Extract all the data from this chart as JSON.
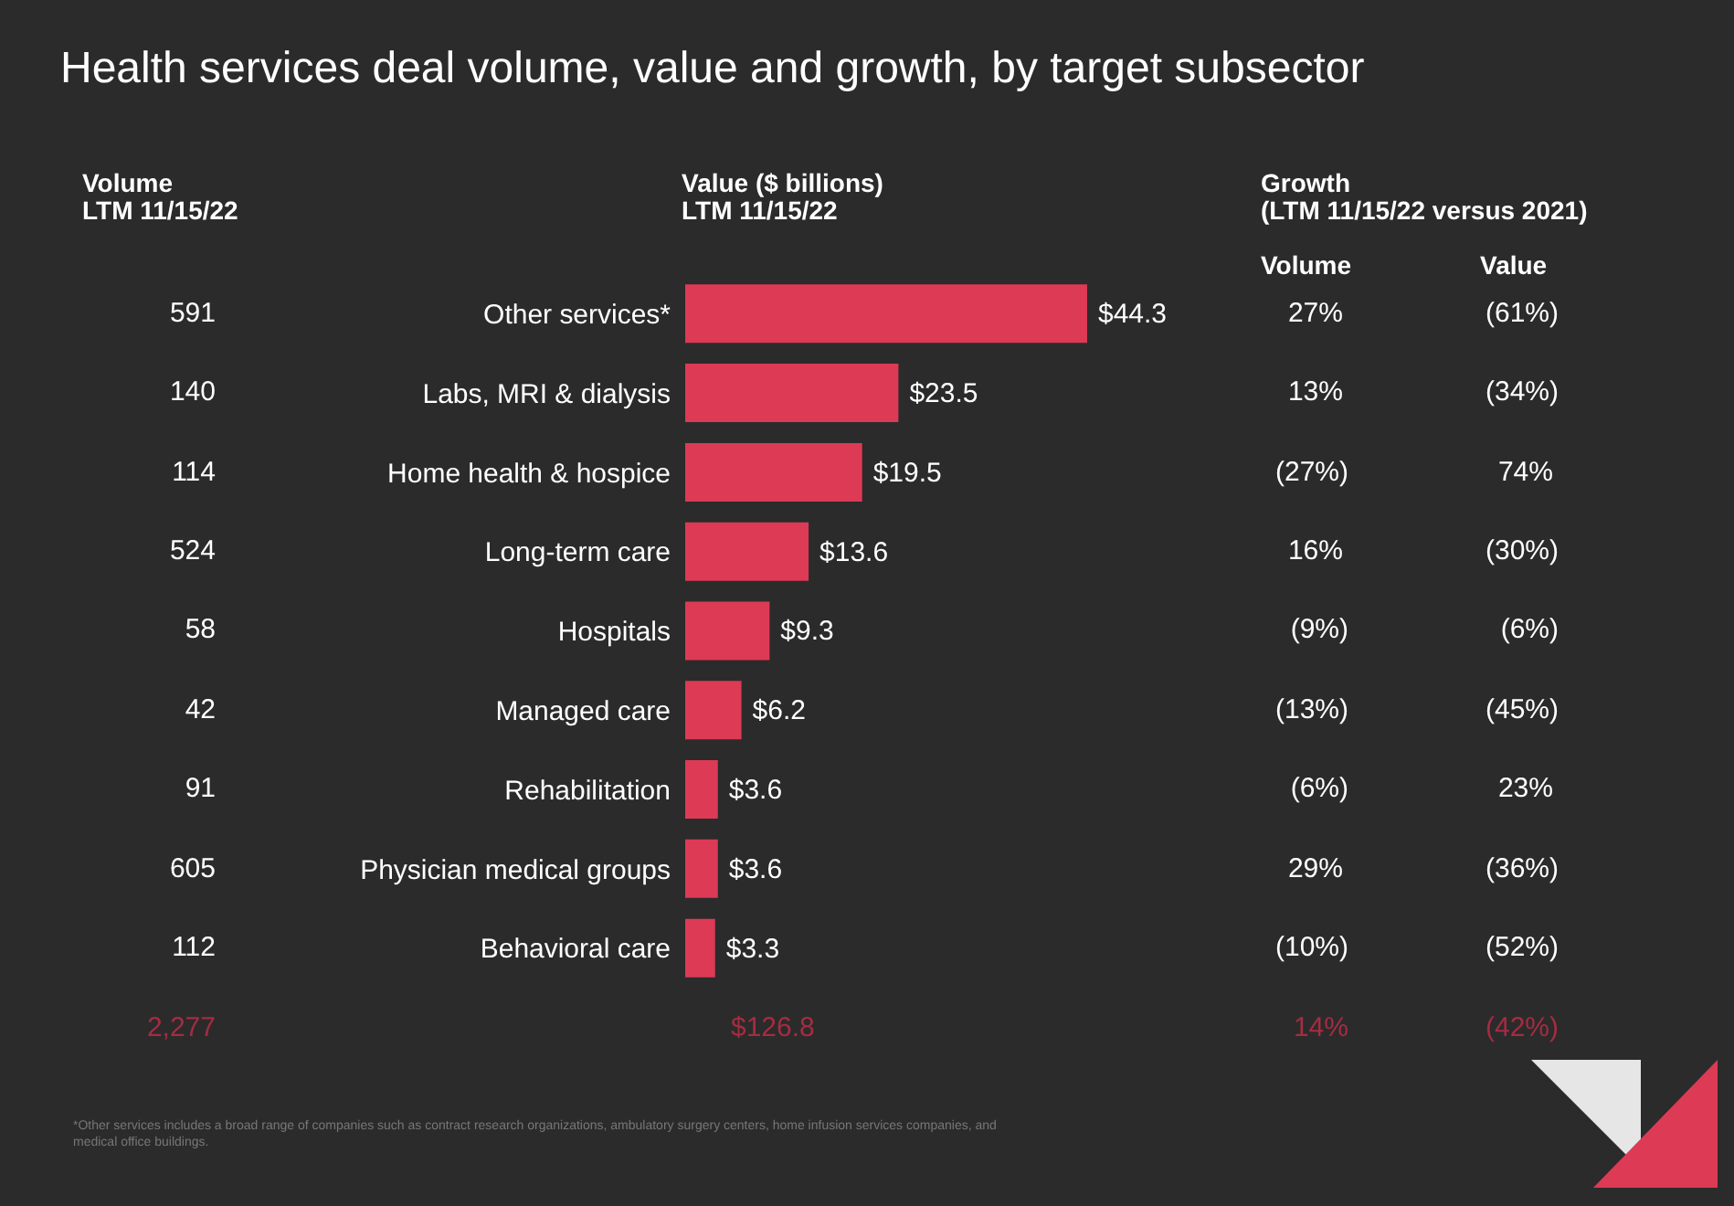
{
  "chart_data": [
    {
      "type": "bar",
      "orientation": "horizontal",
      "title": "Health services deal volume, value and growth, by target subsector",
      "subtitle": "Value ($ billions)\nLTM 11/15/22",
      "categories": [
        "Other services*",
        "Labs, MRI & dialysis",
        "Home health & hospice",
        "Long-term care",
        "Hospitals",
        "Managed care",
        "Rehabilitation",
        "Physician medical groups",
        "Behavioral care"
      ],
      "values": [
        44.3,
        23.5,
        19.5,
        13.6,
        9.3,
        6.2,
        3.6,
        3.6,
        3.3
      ],
      "value_labels": [
        "$44.3",
        "$23.5",
        "$19.5",
        "$13.6",
        "$9.3",
        "$6.2",
        "$3.6",
        "$3.6",
        "$3.3"
      ],
      "color": "#dd3a56",
      "annotations": [
        "$126.8",
        "*Other services includes a broad range of companies such as contract research organizations, ambulatory surgery centers, home infusion services companies, and medical office buildings."
      ]
    },
    {
      "type": "other",
      "title": "Volume\nLTM 11/15/22",
      "values": [
        591,
        140,
        114,
        524,
        58,
        42,
        91,
        605,
        112
      ],
      "data_labels": true,
      "annotations": [
        "2,277"
      ]
    },
    {
      "type": "other",
      "title": "Growth\n(LTM 11/15/22 versus 2021)",
      "subtitle": "Volume",
      "values": [
        27,
        13,
        -27,
        16,
        -9,
        -13,
        -6,
        29,
        -10
      ],
      "value_labels": [
        "27%",
        "13%",
        "(27%)",
        "16%",
        "(9%)",
        "(13%)",
        "(6%)",
        "29%",
        "(10%)"
      ],
      "annotations": [
        "14%"
      ]
    },
    {
      "type": "other",
      "subtitle": "Value",
      "values": [
        -61,
        -34,
        74,
        -30,
        -6,
        -45,
        23,
        -36,
        -52
      ],
      "value_labels": [
        "(61%)",
        "(34%)",
        "74%",
        "(30%)",
        "(6%)",
        "(45%)",
        "23%",
        "(36%)",
        "(52%)"
      ],
      "annotations": [
        "(42%)"
      ]
    }
  ]
}
